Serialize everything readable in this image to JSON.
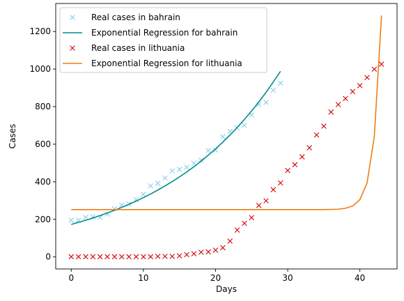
{
  "chart_data": {
    "type": "line",
    "title": "",
    "xlabel": "Days",
    "ylabel": "Cases",
    "xlim": [
      -2.15,
      45.15
    ],
    "ylim": [
      -64,
      1349
    ],
    "xticks": [
      0,
      10,
      20,
      30,
      40
    ],
    "yticks": [
      0,
      200,
      400,
      600,
      800,
      1000,
      1200
    ],
    "grid": false,
    "legend_position": "upper-left",
    "series": [
      {
        "name": "Real cases in bahrain",
        "kind": "scatter",
        "marker": "x",
        "color": "#87CEEB",
        "x": [
          0,
          1,
          2,
          3,
          4,
          5,
          6,
          7,
          8,
          9,
          10,
          11,
          12,
          13,
          14,
          15,
          16,
          17,
          18,
          19,
          20,
          21,
          22,
          23,
          24,
          25,
          26,
          27,
          28,
          29
        ],
        "y": [
          195,
          195,
          210,
          214,
          210,
          228,
          256,
          276,
          282,
          305,
          333,
          378,
          392,
          420,
          458,
          466,
          477,
          499,
          515,
          567,
          569,
          640,
          668,
          687,
          700,
          756,
          811,
          823,
          887,
          925
        ]
      },
      {
        "name": "Exponential Regression for bahrain",
        "kind": "line",
        "color": "#008B8B",
        "x": [
          0,
          1,
          2,
          3,
          4,
          5,
          6,
          7,
          8,
          9,
          10,
          11,
          12,
          13,
          14,
          15,
          16,
          17,
          18,
          19,
          20,
          21,
          22,
          23,
          24,
          25,
          26,
          27,
          28,
          29
        ],
        "y": [
          173,
          184,
          195,
          207,
          220,
          234,
          248,
          264,
          280,
          297,
          316,
          335,
          356,
          378,
          401,
          426,
          452,
          480,
          510,
          542,
          575,
          611,
          649,
          689,
          732,
          777,
          825,
          876,
          931,
          988
        ]
      },
      {
        "name": "Real cases in lithuania",
        "kind": "scatter",
        "marker": "x",
        "color": "#D40000",
        "x": [
          0,
          1,
          2,
          3,
          4,
          5,
          6,
          7,
          8,
          9,
          10,
          11,
          12,
          13,
          14,
          15,
          16,
          17,
          18,
          19,
          20,
          21,
          22,
          23,
          24,
          25,
          26,
          27,
          28,
          29,
          30,
          31,
          32,
          33,
          34,
          35,
          36,
          37,
          38,
          39,
          40,
          41,
          42,
          43
        ],
        "y": [
          1,
          1,
          1,
          1,
          1,
          1,
          1,
          1,
          1,
          1,
          1,
          1,
          3,
          3,
          3,
          6,
          12,
          17,
          25,
          27,
          36,
          49,
          84,
          143,
          179,
          209,
          274,
          299,
          358,
          394,
          460,
          491,
          533,
          581,
          649,
          696,
          771,
          811,
          843,
          880,
          912,
          955,
          999,
          1026
        ]
      },
      {
        "name": "Exponential Regression for lithuania",
        "kind": "line",
        "color": "#F07C10",
        "x": [
          0,
          1,
          2,
          3,
          4,
          5,
          6,
          7,
          8,
          9,
          10,
          11,
          12,
          13,
          14,
          15,
          16,
          17,
          18,
          19,
          20,
          21,
          22,
          23,
          24,
          25,
          26,
          27,
          28,
          29,
          30,
          31,
          32,
          33,
          34,
          35,
          36,
          37,
          38,
          39,
          40,
          41,
          42,
          43
        ],
        "y": [
          252,
          252,
          252,
          252,
          252,
          252,
          252,
          252,
          252,
          252,
          252,
          252,
          252,
          252,
          252,
          252,
          252,
          252,
          252,
          252,
          252,
          252,
          252,
          252,
          252,
          252,
          252,
          252,
          252,
          252,
          252,
          252,
          252,
          252,
          252,
          252,
          253,
          254,
          259,
          271,
          305,
          394,
          640,
          1285
        ]
      }
    ]
  }
}
